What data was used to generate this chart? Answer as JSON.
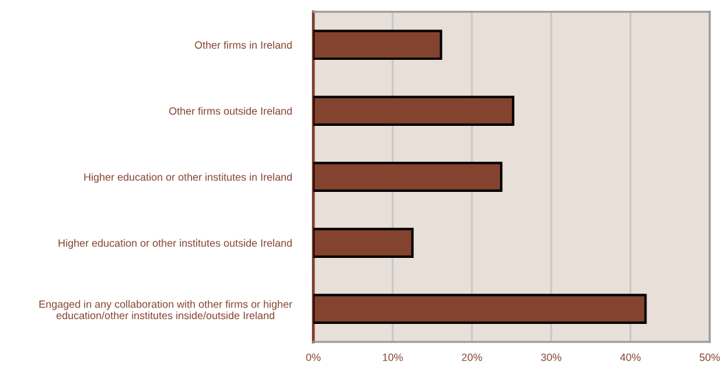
{
  "chart_data": {
    "type": "bar",
    "orientation": "horizontal",
    "categories": [
      "Other firms in Ireland",
      "Other firms outside Ireland",
      "Higher education or other institutes in Ireland",
      "Higher education or other institutes outside Ireland",
      "Engaged in any collaboration with other firms or higher\neducation/other institutes inside/outside Ireland"
    ],
    "values": [
      16.1,
      25.2,
      23.7,
      12.5,
      41.9
    ],
    "color": "#84432f",
    "xlim": [
      0,
      50
    ],
    "xticks": [
      {
        "value": 0,
        "label": "0%"
      },
      {
        "value": 10,
        "label": "10%"
      },
      {
        "value": 20,
        "label": "20%"
      },
      {
        "value": 30,
        "label": "30%"
      },
      {
        "value": 40,
        "label": "40%"
      },
      {
        "value": 50,
        "label": "50%"
      }
    ],
    "grid": "x",
    "legend": false
  }
}
